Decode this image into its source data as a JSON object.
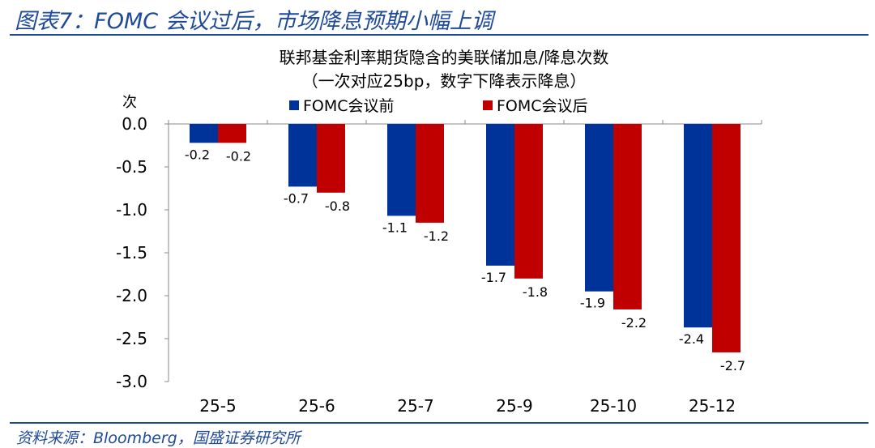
{
  "header": {
    "title": "图表7：FOMC 会议过后，市场降息预期小幅上调"
  },
  "footer": {
    "source": "资料来源：Bloomberg，国盛证券研究所"
  },
  "colors": {
    "accent": "#1f4a9a",
    "series_before": "#003399",
    "series_after": "#c00000"
  },
  "chart_data": {
    "type": "bar",
    "title": "联邦基金利率期货隐含的美联储加息/降息次数",
    "subtitle": "（一次对应25bp，数字下降表示降息）",
    "ylabel": "次",
    "xlabel": "",
    "ylim": [
      -3.0,
      0.0
    ],
    "yticks": [
      "0.0",
      "-0.5",
      "-1.0",
      "-1.5",
      "-2.0",
      "-2.5",
      "-3.0"
    ],
    "categories": [
      "25-5",
      "25-6",
      "25-7",
      "25-9",
      "25-10",
      "25-12"
    ],
    "legend_position": "top",
    "grid": false,
    "series": [
      {
        "name": "FOMC会议前",
        "values": [
          -0.22,
          -0.73,
          -1.07,
          -1.65,
          -1.95,
          -2.37
        ],
        "labels": [
          "-0.2",
          "-0.7",
          "-1.1",
          "-1.7",
          "-1.9",
          "-2.4"
        ]
      },
      {
        "name": "FOMC会议后",
        "values": [
          -0.22,
          -0.8,
          -1.15,
          -1.8,
          -2.16,
          -2.66
        ],
        "labels": [
          "-0.2",
          "-0.8",
          "-1.2",
          "-1.8",
          "-2.2",
          "-2.7"
        ]
      }
    ]
  }
}
